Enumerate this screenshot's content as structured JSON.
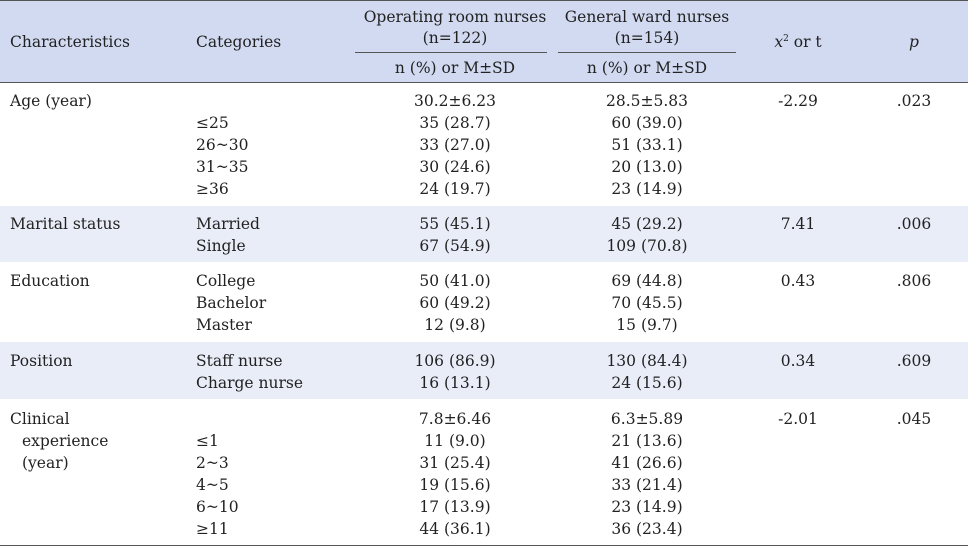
{
  "header": {
    "characteristics": "Characteristics",
    "categories": "Categories",
    "or_group": "Operating room nurses",
    "or_n": "(n=122)",
    "gw_group": "General ward nurses",
    "gw_n": "(n=154)",
    "stat_x": "x",
    "stat_sup": "2",
    "stat_rest": " or t",
    "p": "p",
    "or_sub": "n (%) or M±SD",
    "gw_sub": "n (%) or M±SD"
  },
  "rows": {
    "age": {
      "label": "Age (year)",
      "or_mean": "30.2±6.23",
      "gw_mean": "28.5±5.83",
      "stat": "-2.29",
      "p": ".023",
      "cats": [
        "≤25",
        "26~30",
        "31~35",
        "≥36"
      ],
      "or": [
        "35 (28.7)",
        "33 (27.0)",
        "30 (24.6)",
        "24 (19.7)"
      ],
      "gw": [
        "60 (39.0)",
        "51 (33.1)",
        "20 (13.0)",
        "23 (14.9)"
      ]
    },
    "marital": {
      "label": "Marital status",
      "stat": "7.41",
      "p": ".006",
      "cats": [
        "Married",
        "Single"
      ],
      "or": [
        "55 (45.1)",
        "67 (54.9)"
      ],
      "gw": [
        "45 (29.2)",
        "109 (70.8)"
      ]
    },
    "education": {
      "label": "Education",
      "stat": "0.43",
      "p": ".806",
      "cats": [
        "College",
        "Bachelor",
        "Master"
      ],
      "or": [
        "50 (41.0)",
        "60 (49.2)",
        "12 (9.8)"
      ],
      "gw": [
        "69 (44.8)",
        "70 (45.5)",
        "15 (9.7)"
      ]
    },
    "position": {
      "label": "Position",
      "stat": "0.34",
      "p": ".609",
      "cats": [
        "Staff nurse",
        "Charge nurse"
      ],
      "or": [
        "106 (86.9)",
        "16 (13.1)"
      ],
      "gw": [
        "130 (84.4)",
        "24 (15.6)"
      ]
    },
    "clinical": {
      "label_lines": [
        "Clinical",
        "experience",
        "(year)"
      ],
      "or_mean": "7.8±6.46",
      "gw_mean": "6.3±5.89",
      "stat": "-2.01",
      "p": ".045",
      "cats": [
        "≤1",
        "2~3",
        "4~5",
        "6~10",
        "≥11"
      ],
      "or": [
        "11 (9.0)",
        "31 (25.4)",
        "19 (15.6)",
        "17 (13.9)",
        "44 (36.1)"
      ],
      "gw": [
        "21 (13.6)",
        "41 (26.6)",
        "33 (21.4)",
        "23 (14.9)",
        "36 (23.4)"
      ]
    }
  }
}
